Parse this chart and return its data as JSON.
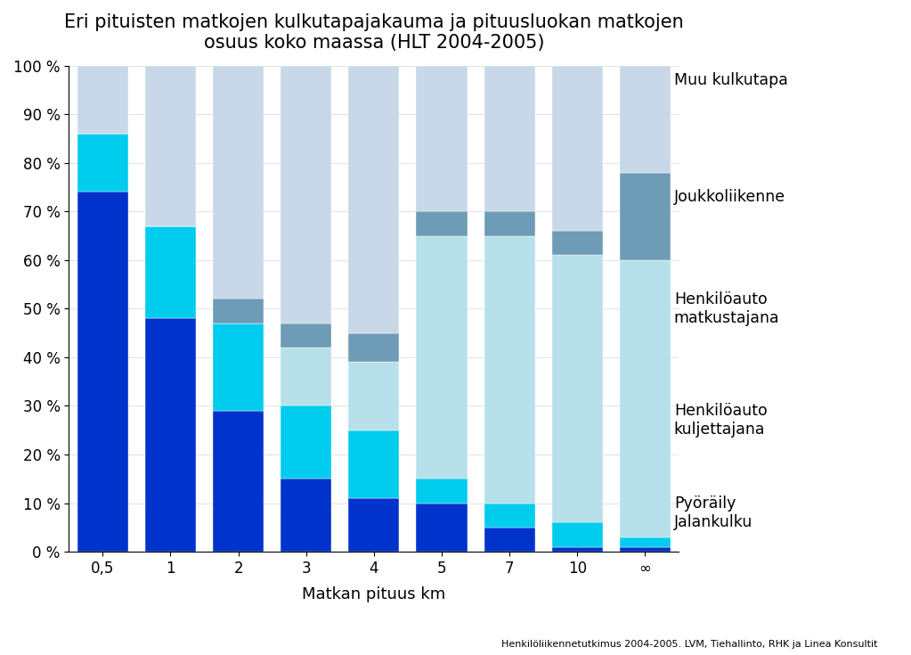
{
  "title": "Eri pituisten matkojen kulkutapajakauma ja pituusluokan matkojen\nosuus koko maassa (HLT 2004-2005)",
  "xlabel": "Matkan pituus km",
  "footnote": "Henkilöliikennetutkimus 2004-2005. LVM, Tiehallinto, RHK ja Linea Konsultit",
  "categories": [
    "0,5",
    "1",
    "2",
    "3",
    "4",
    "5",
    "7",
    "10",
    "∞"
  ],
  "legend_labels_ordered_top_to_bottom": [
    "Muu kulkutapa",
    "Joukkoliikenne",
    "Henkilöauto\nmatkustajana",
    "Henkilöauto\nkuljettajana",
    "Pyöräily\nJalankulku"
  ],
  "colors_bottom_to_top": [
    "#0033CC",
    "#00CCEE",
    "#B8DDE8",
    "#7BA7BC",
    "#C5D8E5"
  ],
  "segments_bottom_to_top": {
    "Pyöräily Jalankulku": [
      74,
      48,
      29,
      15,
      11,
      10,
      5,
      1,
      1
    ],
    "Henkilöauto kuljettajana": [
      12,
      19,
      18,
      15,
      14,
      5,
      5,
      5,
      2
    ],
    "Henkilöauto matkustajana": [
      0,
      0,
      0,
      12,
      14,
      50,
      55,
      55,
      57
    ],
    "Joukkoliikenne": [
      0,
      0,
      5,
      5,
      6,
      5,
      5,
      5,
      18
    ],
    "Muu kulkutapa": [
      14,
      33,
      48,
      53,
      55,
      30,
      30,
      34,
      22
    ]
  },
  "ylim": [
    0,
    100
  ],
  "yticks": [
    0,
    10,
    20,
    30,
    40,
    50,
    60,
    70,
    80,
    90,
    100
  ],
  "ytick_labels": [
    "0 %",
    "10 %",
    "20 %",
    "30 %",
    "40 %",
    "50 %",
    "60 %",
    "70 %",
    "80 %",
    "90 %",
    "100 %"
  ],
  "background_color": "#FFFFFF",
  "title_fontsize": 15,
  "label_fontsize": 13,
  "tick_fontsize": 12,
  "legend_fontsize": 12.5
}
